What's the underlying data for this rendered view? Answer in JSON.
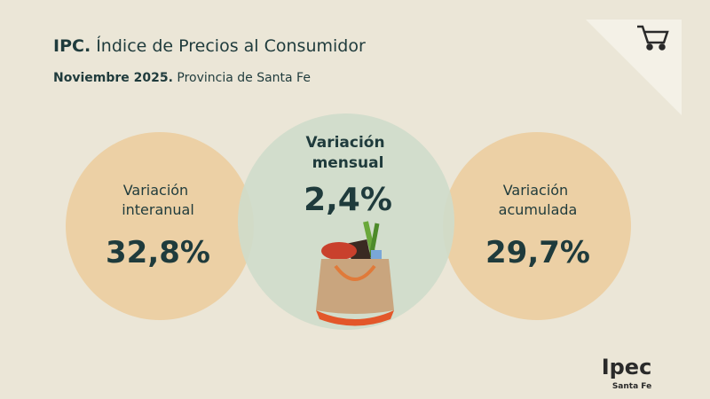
{
  "header": {
    "title_prefix": "IPC.",
    "title": "Índice de Precios al Consumidor",
    "subtitle_prefix": "Noviembre 2025.",
    "subtitle": "Provincia de Santa Fe"
  },
  "indicators": [
    {
      "label": [
        "Variación",
        "interanual"
      ],
      "value": "32,8%"
    },
    {
      "label": [
        "Variación",
        "mensual"
      ],
      "value": "2,4%"
    },
    {
      "label": [
        "Variación",
        "acumulada"
      ],
      "value": "29,7%"
    }
  ],
  "logo": {
    "name": "Ipec",
    "region": "Santa Fe"
  }
}
